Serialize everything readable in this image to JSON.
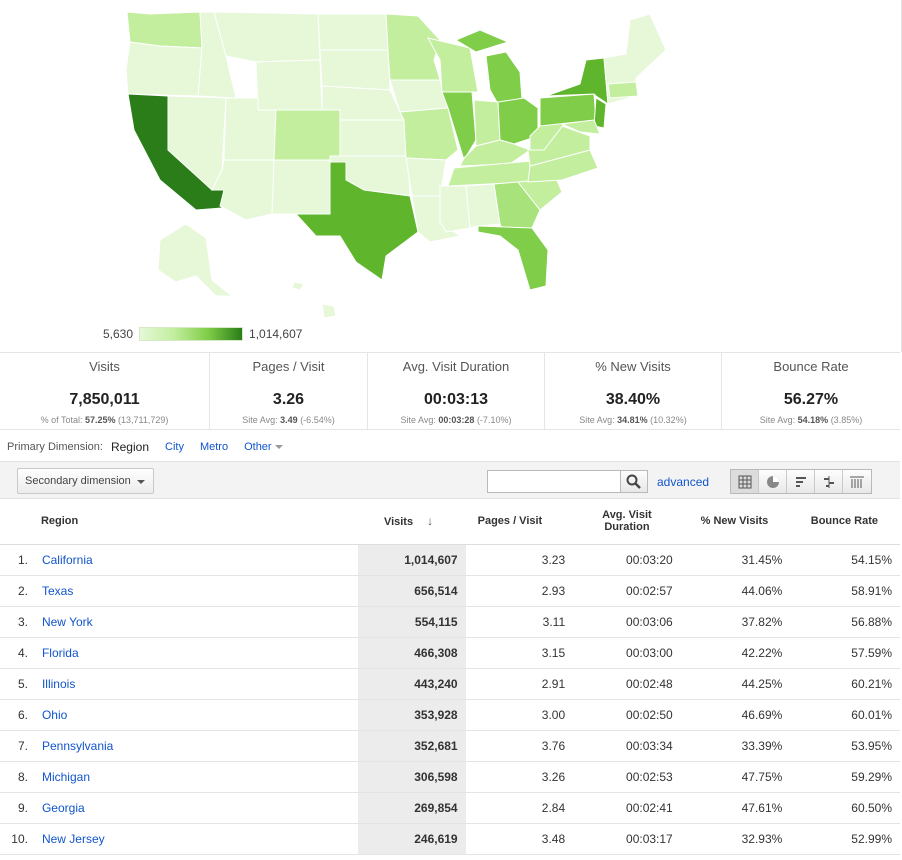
{
  "map": {
    "legend_min": "5,630",
    "legend_max": "1,014,607",
    "colors": {
      "lightest": "#e6f8d8",
      "light": "#c2ee9e",
      "mid": "#a8e27a",
      "medium": "#7fcd48",
      "strong": "#5fb52c",
      "darkest": "#2a7d18"
    }
  },
  "scorecards": [
    {
      "name": "Visits",
      "value": "7,850,011",
      "sub_prefix": "% of Total: ",
      "sub_bold": "57.25%",
      "sub_suffix": " (13,711,729)"
    },
    {
      "name": "Pages / Visit",
      "value": "3.26",
      "sub_prefix": "Site Avg: ",
      "sub_bold": "3.49",
      "sub_suffix": " (-6.54%)"
    },
    {
      "name": "Avg. Visit Duration",
      "value": "00:03:13",
      "sub_prefix": "Site Avg: ",
      "sub_bold": "00:03:28",
      "sub_suffix": " (-7.10%)"
    },
    {
      "name": "% New Visits",
      "value": "38.40%",
      "sub_prefix": "Site Avg: ",
      "sub_bold": "34.81%",
      "sub_suffix": " (10.32%)"
    },
    {
      "name": "Bounce Rate",
      "value": "56.27%",
      "sub_prefix": "Site Avg: ",
      "sub_bold": "54.18%",
      "sub_suffix": " (3.85%)"
    }
  ],
  "dimension": {
    "label": "Primary Dimension:",
    "current": "Region",
    "options": [
      "City",
      "Metro",
      "Other"
    ]
  },
  "toolbar": {
    "secondary_dimension": "Secondary dimension",
    "search_value": "",
    "advanced": "advanced",
    "views": [
      "table-view-icon",
      "pie-view-icon",
      "performance-view-icon",
      "comparison-view-icon",
      "pivot-view-icon"
    ]
  },
  "table": {
    "headers": {
      "region": "Region",
      "visits": "Visits",
      "pages": "Pages / Visit",
      "duration_line1": "Avg. Visit",
      "duration_line2": "Duration",
      "new_visits": "% New Visits",
      "bounce": "Bounce Rate"
    },
    "rows": [
      {
        "idx": "1.",
        "region": "California",
        "visits": "1,014,607",
        "pages": "3.23",
        "duration": "00:03:20",
        "new_visits": "31.45%",
        "bounce": "54.15%"
      },
      {
        "idx": "2.",
        "region": "Texas",
        "visits": "656,514",
        "pages": "2.93",
        "duration": "00:02:57",
        "new_visits": "44.06%",
        "bounce": "58.91%"
      },
      {
        "idx": "3.",
        "region": "New York",
        "visits": "554,115",
        "pages": "3.11",
        "duration": "00:03:06",
        "new_visits": "37.82%",
        "bounce": "56.88%"
      },
      {
        "idx": "4.",
        "region": "Florida",
        "visits": "466,308",
        "pages": "3.15",
        "duration": "00:03:00",
        "new_visits": "42.22%",
        "bounce": "57.59%"
      },
      {
        "idx": "5.",
        "region": "Illinois",
        "visits": "443,240",
        "pages": "2.91",
        "duration": "00:02:48",
        "new_visits": "44.25%",
        "bounce": "60.21%"
      },
      {
        "idx": "6.",
        "region": "Ohio",
        "visits": "353,928",
        "pages": "3.00",
        "duration": "00:02:50",
        "new_visits": "46.69%",
        "bounce": "60.01%"
      },
      {
        "idx": "7.",
        "region": "Pennsylvania",
        "visits": "352,681",
        "pages": "3.76",
        "duration": "00:03:34",
        "new_visits": "33.39%",
        "bounce": "53.95%"
      },
      {
        "idx": "8.",
        "region": "Michigan",
        "visits": "306,598",
        "pages": "3.26",
        "duration": "00:02:53",
        "new_visits": "47.75%",
        "bounce": "59.29%"
      },
      {
        "idx": "9.",
        "region": "Georgia",
        "visits": "269,854",
        "pages": "2.84",
        "duration": "00:02:41",
        "new_visits": "47.61%",
        "bounce": "60.50%"
      },
      {
        "idx": "10.",
        "region": "New Jersey",
        "visits": "246,619",
        "pages": "3.48",
        "duration": "00:03:17",
        "new_visits": "32.93%",
        "bounce": "52.99%"
      }
    ]
  }
}
